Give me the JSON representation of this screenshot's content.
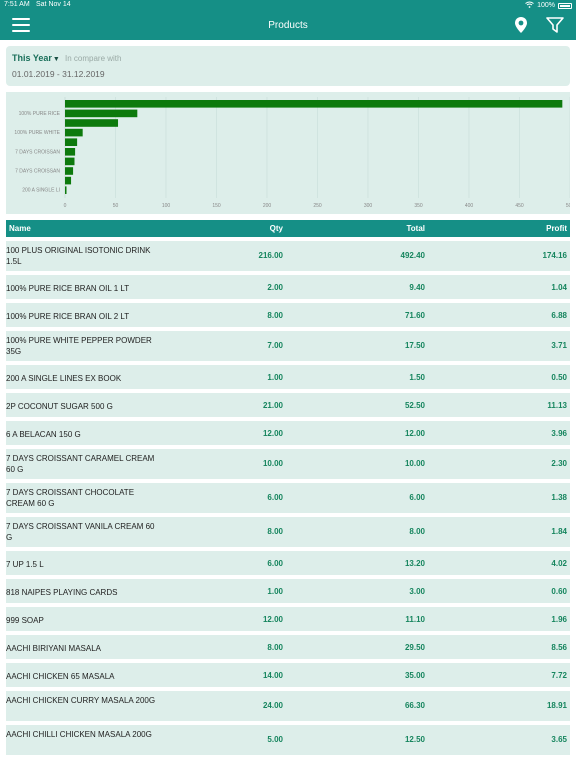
{
  "status_bar": {
    "time": "7:51 AM",
    "date": "Sat Nov 14",
    "battery": "100%"
  },
  "header": {
    "title": "Products",
    "icons": [
      "menu-icon",
      "location-pin-icon",
      "filter-icon"
    ]
  },
  "filter": {
    "period": "This Year",
    "compare_label": "In compare with",
    "date_range": "01.01.2019 - 31.12.2019"
  },
  "chart_data": {
    "type": "bar",
    "orientation": "horizontal",
    "category_labels": [
      "100% PURE RICE",
      "100% PURE WHITE",
      "7 DAYS CROISSAN",
      "7 DAYS CROISSAN",
      "200 A SINGLE LI"
    ],
    "values": [
      492.4,
      71.6,
      52.5,
      17.5,
      12.0,
      10.0,
      9.4,
      8.0,
      6.0,
      1.5
    ],
    "x_ticks": [
      "0",
      "50",
      "100",
      "150",
      "200",
      "250",
      "300",
      "350",
      "400",
      "450",
      "500"
    ],
    "xlim": [
      0,
      500
    ],
    "grid": true,
    "bar_color": "#0d7a0d"
  },
  "table": {
    "columns": [
      "Name",
      "Qty",
      "Total",
      "Profit"
    ],
    "rows": [
      {
        "name": "100 PLUS ORIGINAL ISOTONIC DRINK 1.5L",
        "qty": "216.00",
        "total": "492.40",
        "profit": "174.16"
      },
      {
        "name": "100% PURE RICE BRAN OIL 1 LT",
        "qty": "2.00",
        "total": "9.40",
        "profit": "1.04"
      },
      {
        "name": "100% PURE RICE BRAN OIL 2 LT",
        "qty": "8.00",
        "total": "71.60",
        "profit": "6.88"
      },
      {
        "name": "100% PURE WHITE PEPPER POWDER 35G",
        "qty": "7.00",
        "total": "17.50",
        "profit": "3.71"
      },
      {
        "name": "200 A SINGLE LINES EX BOOK",
        "qty": "1.00",
        "total": "1.50",
        "profit": "0.50"
      },
      {
        "name": "2P COCONUT SUGAR 500 G",
        "qty": "21.00",
        "total": "52.50",
        "profit": "11.13"
      },
      {
        "name": "6 A BELACAN 150 G",
        "qty": "12.00",
        "total": "12.00",
        "profit": "3.96"
      },
      {
        "name": "7 DAYS CROISSANT CARAMEL CREAM 60 G",
        "qty": "10.00",
        "total": "10.00",
        "profit": "2.30"
      },
      {
        "name": "7 DAYS CROISSANT CHOCOLATE CREAM 60 G",
        "qty": "6.00",
        "total": "6.00",
        "profit": "1.38"
      },
      {
        "name": "7 DAYS CROISSANT VANILA CREAM 60 G",
        "qty": "8.00",
        "total": "8.00",
        "profit": "1.84"
      },
      {
        "name": "7 UP 1.5 L",
        "qty": "6.00",
        "total": "13.20",
        "profit": "4.02"
      },
      {
        "name": "818 NAIPES PLAYING CARDS",
        "qty": "1.00",
        "total": "3.00",
        "profit": "0.60"
      },
      {
        "name": "999 SOAP",
        "qty": "12.00",
        "total": "11.10",
        "profit": "1.96"
      },
      {
        "name": "AACHI BIRIYANI MASALA",
        "qty": "8.00",
        "total": "29.50",
        "profit": "8.56"
      },
      {
        "name": "AACHI CHICKEN 65 MASALA",
        "qty": "14.00",
        "total": "35.00",
        "profit": "7.72"
      },
      {
        "name": "AACHI CHICKEN CURRY MASALA 200G",
        "qty": "24.00",
        "total": "66.30",
        "profit": "18.91"
      },
      {
        "name": "AACHI CHILLI CHICKEN MASALA 200G",
        "qty": "5.00",
        "total": "12.50",
        "profit": "3.65"
      }
    ]
  }
}
